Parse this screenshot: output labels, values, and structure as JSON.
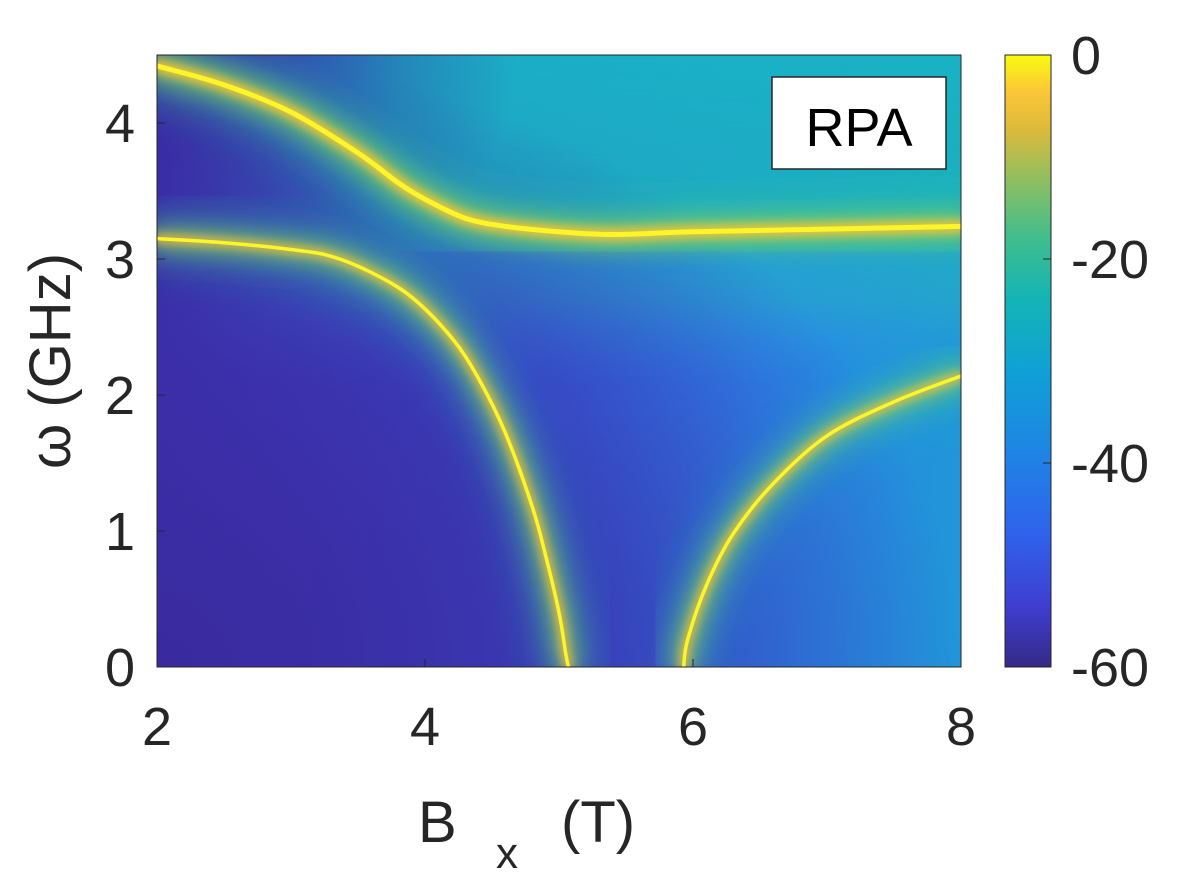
{
  "chart_data": {
    "type": "heatmap",
    "title": "",
    "annotation": "RPA",
    "xlabel": {
      "main": "B",
      "sub": "x",
      "unit": "(T)"
    },
    "ylabel": "ω (GHz)",
    "xlim": [
      2,
      8
    ],
    "ylim": [
      0,
      4.5
    ],
    "xticks": [
      "2",
      "4",
      "6",
      "8"
    ],
    "yticks": [
      "0",
      "1",
      "2",
      "3",
      "4"
    ],
    "colorbar": {
      "range": [
        -60,
        0
      ],
      "ticks": [
        "0",
        "-20",
        "-40",
        "-60"
      ],
      "colormap": "parula"
    },
    "modes": [
      {
        "id": "upper-branch",
        "points": [
          [
            2.0,
            4.42
          ],
          [
            2.5,
            4.28
          ],
          [
            3.0,
            4.08
          ],
          [
            3.5,
            3.78
          ],
          [
            3.8,
            3.56
          ],
          [
            4.0,
            3.44
          ],
          [
            4.3,
            3.3
          ],
          [
            4.6,
            3.24
          ],
          [
            5.0,
            3.2
          ],
          [
            5.4,
            3.18
          ],
          [
            6.0,
            3.2
          ],
          [
            7.0,
            3.22
          ],
          [
            8.0,
            3.24
          ]
        ]
      },
      {
        "id": "lower-left-branch",
        "points": [
          [
            2.0,
            3.15
          ],
          [
            2.5,
            3.12
          ],
          [
            3.0,
            3.07
          ],
          [
            3.3,
            3.02
          ],
          [
            3.6,
            2.9
          ],
          [
            3.9,
            2.72
          ],
          [
            4.2,
            2.42
          ],
          [
            4.4,
            2.12
          ],
          [
            4.6,
            1.72
          ],
          [
            4.8,
            1.18
          ],
          [
            4.9,
            0.82
          ],
          [
            5.0,
            0.4
          ],
          [
            5.05,
            0.1
          ],
          [
            5.07,
            0.0
          ]
        ]
      },
      {
        "id": "lower-right-branch",
        "points": [
          [
            5.93,
            0.0
          ],
          [
            5.96,
            0.2
          ],
          [
            6.1,
            0.6
          ],
          [
            6.3,
            0.98
          ],
          [
            6.6,
            1.35
          ],
          [
            7.0,
            1.7
          ],
          [
            7.5,
            1.95
          ],
          [
            8.0,
            2.14
          ]
        ]
      }
    ]
  }
}
